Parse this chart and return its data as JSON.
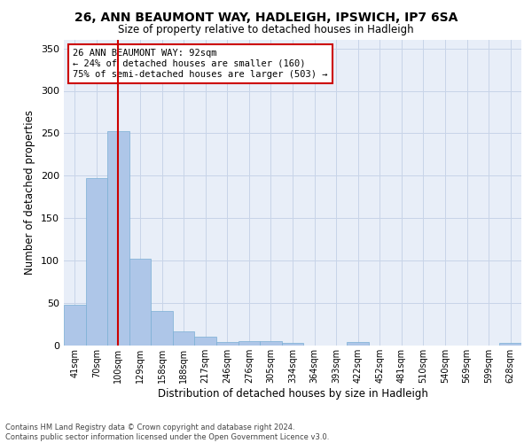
{
  "title1": "26, ANN BEAUMONT WAY, HADLEIGH, IPSWICH, IP7 6SA",
  "title2": "Size of property relative to detached houses in Hadleigh",
  "xlabel": "Distribution of detached houses by size in Hadleigh",
  "ylabel": "Number of detached properties",
  "categories": [
    "41sqm",
    "70sqm",
    "100sqm",
    "129sqm",
    "158sqm",
    "188sqm",
    "217sqm",
    "246sqm",
    "276sqm",
    "305sqm",
    "334sqm",
    "364sqm",
    "393sqm",
    "422sqm",
    "452sqm",
    "481sqm",
    "510sqm",
    "540sqm",
    "569sqm",
    "599sqm",
    "628sqm"
  ],
  "values": [
    48,
    197,
    253,
    102,
    41,
    17,
    10,
    4,
    5,
    5,
    3,
    0,
    0,
    4,
    0,
    0,
    0,
    0,
    0,
    0,
    3
  ],
  "bar_color": "#aec6e8",
  "bar_edge_color": "#7aafd4",
  "grid_color": "#c8d4e8",
  "background_color": "#e8eef8",
  "vline_x": 2,
  "vline_color": "#cc0000",
  "annotation_text": "26 ANN BEAUMONT WAY: 92sqm\n← 24% of detached houses are smaller (160)\n75% of semi-detached houses are larger (503) →",
  "annotation_box_color": "#ffffff",
  "annotation_box_edge": "#cc0000",
  "ylim": [
    0,
    360
  ],
  "yticks": [
    0,
    50,
    100,
    150,
    200,
    250,
    300,
    350
  ],
  "footnote": "Contains HM Land Registry data © Crown copyright and database right 2024.\nContains public sector information licensed under the Open Government Licence v3.0."
}
